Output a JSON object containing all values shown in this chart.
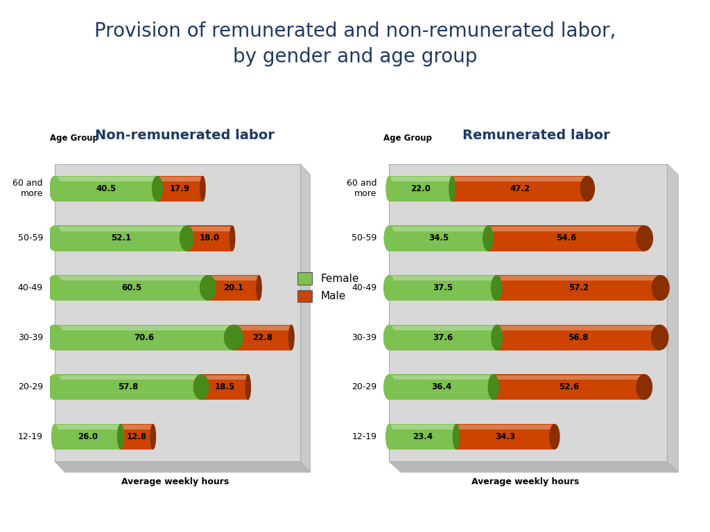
{
  "title": "Provision of remunerated and non-remunerated labor,\nby gender and age group",
  "title_color": "#1F3864",
  "title_fontsize": 20,
  "left_title": "Non-remunerated labor",
  "right_title": "Remunerated labor",
  "subtitle_color": "#1F3864",
  "subtitle_fontsize": 14,
  "age_groups": [
    "12-19",
    "20-29",
    "30-39",
    "40-49",
    "50-59",
    "60 and\nmore"
  ],
  "xlabel": "Average weekly hours",
  "ylabel": "Age Group",
  "female_color": "#7DC152",
  "female_dark": "#4A8A1A",
  "male_color": "#CC4400",
  "male_dark": "#883000",
  "background_color": "#ffffff",
  "panel_color": "#D8D8D8",
  "panel_edge": "#AAAAAA",
  "shadow_color": "#AAAAAA",
  "non_rem_female": [
    26.0,
    57.8,
    70.6,
    60.5,
    52.1,
    40.5
  ],
  "non_rem_male": [
    12.8,
    18.5,
    22.8,
    20.1,
    18.0,
    17.9
  ],
  "rem_female": [
    23.4,
    36.4,
    37.6,
    37.5,
    34.5,
    22.0
  ],
  "rem_male": [
    34.3,
    52.6,
    56.8,
    57.2,
    54.6,
    47.2
  ],
  "legend_female": "Female",
  "legend_male": "Male",
  "non_rem_max": 95,
  "rem_max": 95
}
